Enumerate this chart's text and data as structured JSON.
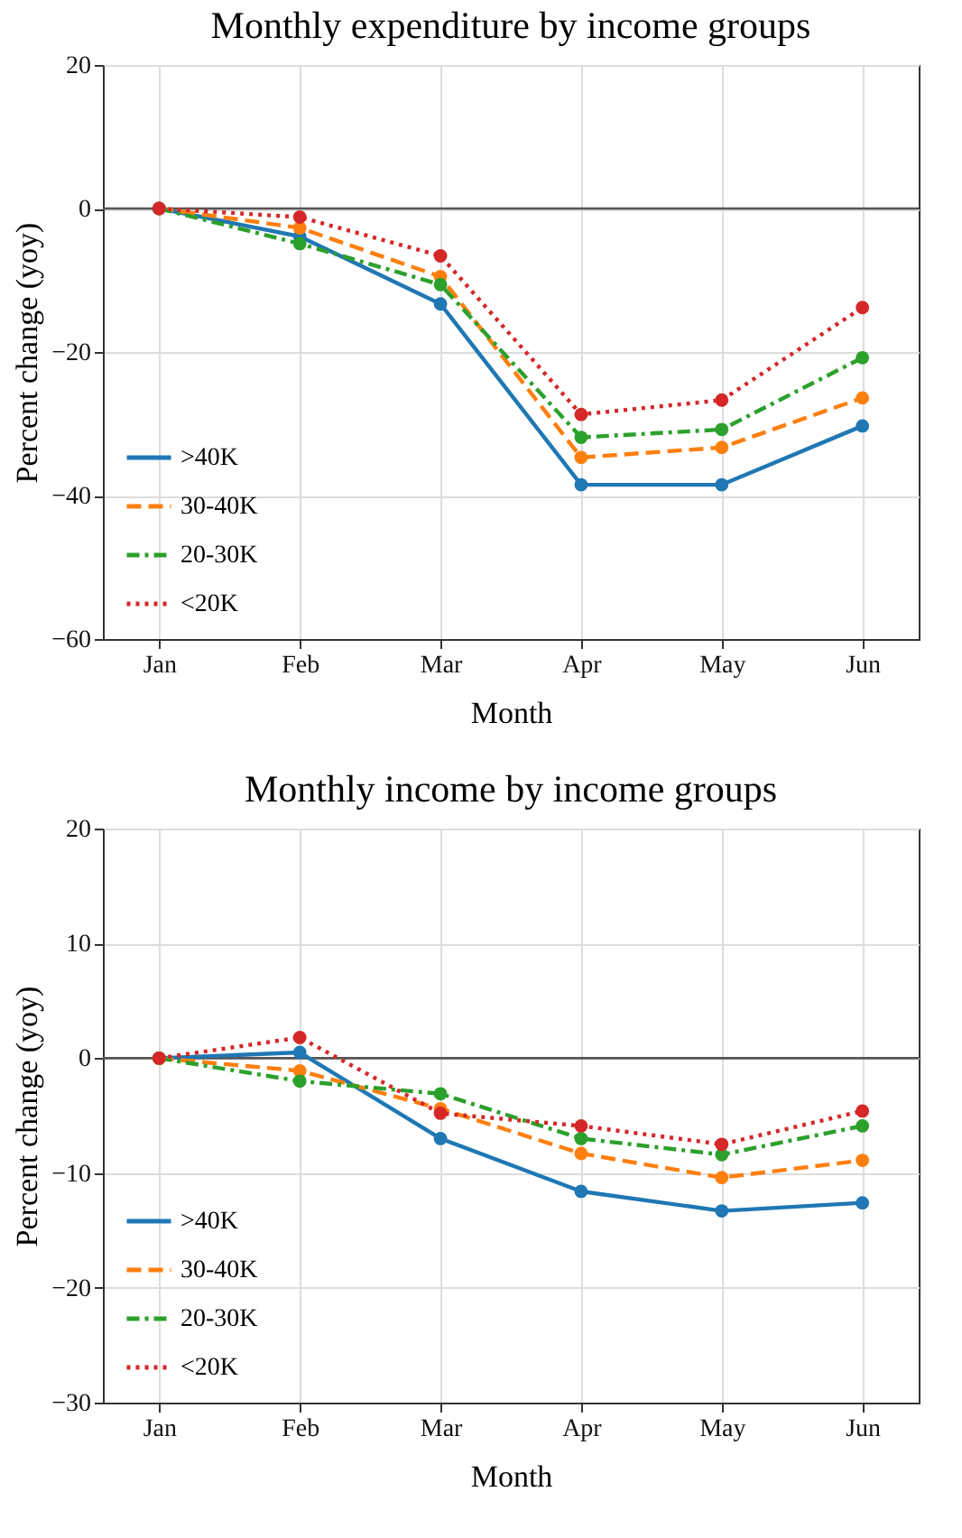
{
  "chart_data": [
    {
      "type": "line",
      "title": "Monthly expenditure by income groups",
      "xlabel": "Month",
      "ylabel": "Percent change (yoy)",
      "categories": [
        "Jan",
        "Feb",
        "Mar",
        "Apr",
        "May",
        "Jun"
      ],
      "ylim": [
        -60,
        20
      ],
      "yticks": [
        -60,
        -40,
        -20,
        0,
        20
      ],
      "grid": true,
      "legend": "bottom left",
      "marker": "circle",
      "ref_lines": [
        {
          "axis": "y",
          "value": 0,
          "color": "#555555"
        }
      ],
      "series": [
        {
          "name": ">40K",
          "color": "#1f77b4",
          "line_style": "solid",
          "values": [
            0,
            -3.9,
            -13.3,
            -38.5,
            -38.5,
            -30.3
          ]
        },
        {
          "name": "30-40K",
          "color": "#ff7f0e",
          "line_style": "dashed",
          "values": [
            0,
            -2.7,
            -9.5,
            -34.7,
            -33.3,
            -26.4
          ]
        },
        {
          "name": "20-30K",
          "color": "#2ca02c",
          "line_style": "dashdot",
          "values": [
            0,
            -4.9,
            -10.6,
            -31.9,
            -30.8,
            -20.8
          ]
        },
        {
          "name": "<20K",
          "color": "#d62728",
          "line_style": "dotted",
          "values": [
            0,
            -1.2,
            -6.6,
            -28.7,
            -26.7,
            -13.8
          ]
        }
      ]
    },
    {
      "type": "line",
      "title": "Monthly income by income groups",
      "xlabel": "Month",
      "ylabel": "Percent change (yoy)",
      "categories": [
        "Jan",
        "Feb",
        "Mar",
        "Apr",
        "May",
        "Jun"
      ],
      "ylim": [
        -30,
        20
      ],
      "yticks": [
        -30,
        -20,
        -10,
        0,
        10,
        20
      ],
      "grid": true,
      "legend": "bottom left",
      "marker": "circle",
      "ref_lines": [
        {
          "axis": "y",
          "value": 0,
          "color": "#555555"
        }
      ],
      "series": [
        {
          "name": ">40K",
          "color": "#1f77b4",
          "line_style": "solid",
          "values": [
            0,
            0.5,
            -7.0,
            -11.6,
            -13.3,
            -12.6
          ]
        },
        {
          "name": "30-40K",
          "color": "#ff7f0e",
          "line_style": "dashed",
          "values": [
            0,
            -1.1,
            -4.4,
            -8.3,
            -10.4,
            -8.9
          ]
        },
        {
          "name": "20-30K",
          "color": "#2ca02c",
          "line_style": "dashdot",
          "values": [
            0,
            -2.0,
            -3.1,
            -7.0,
            -8.4,
            -5.9
          ]
        },
        {
          "name": "<20K",
          "color": "#d62728",
          "line_style": "dotted",
          "values": [
            0,
            1.8,
            -4.8,
            -5.9,
            -7.5,
            -4.6
          ]
        }
      ]
    }
  ]
}
